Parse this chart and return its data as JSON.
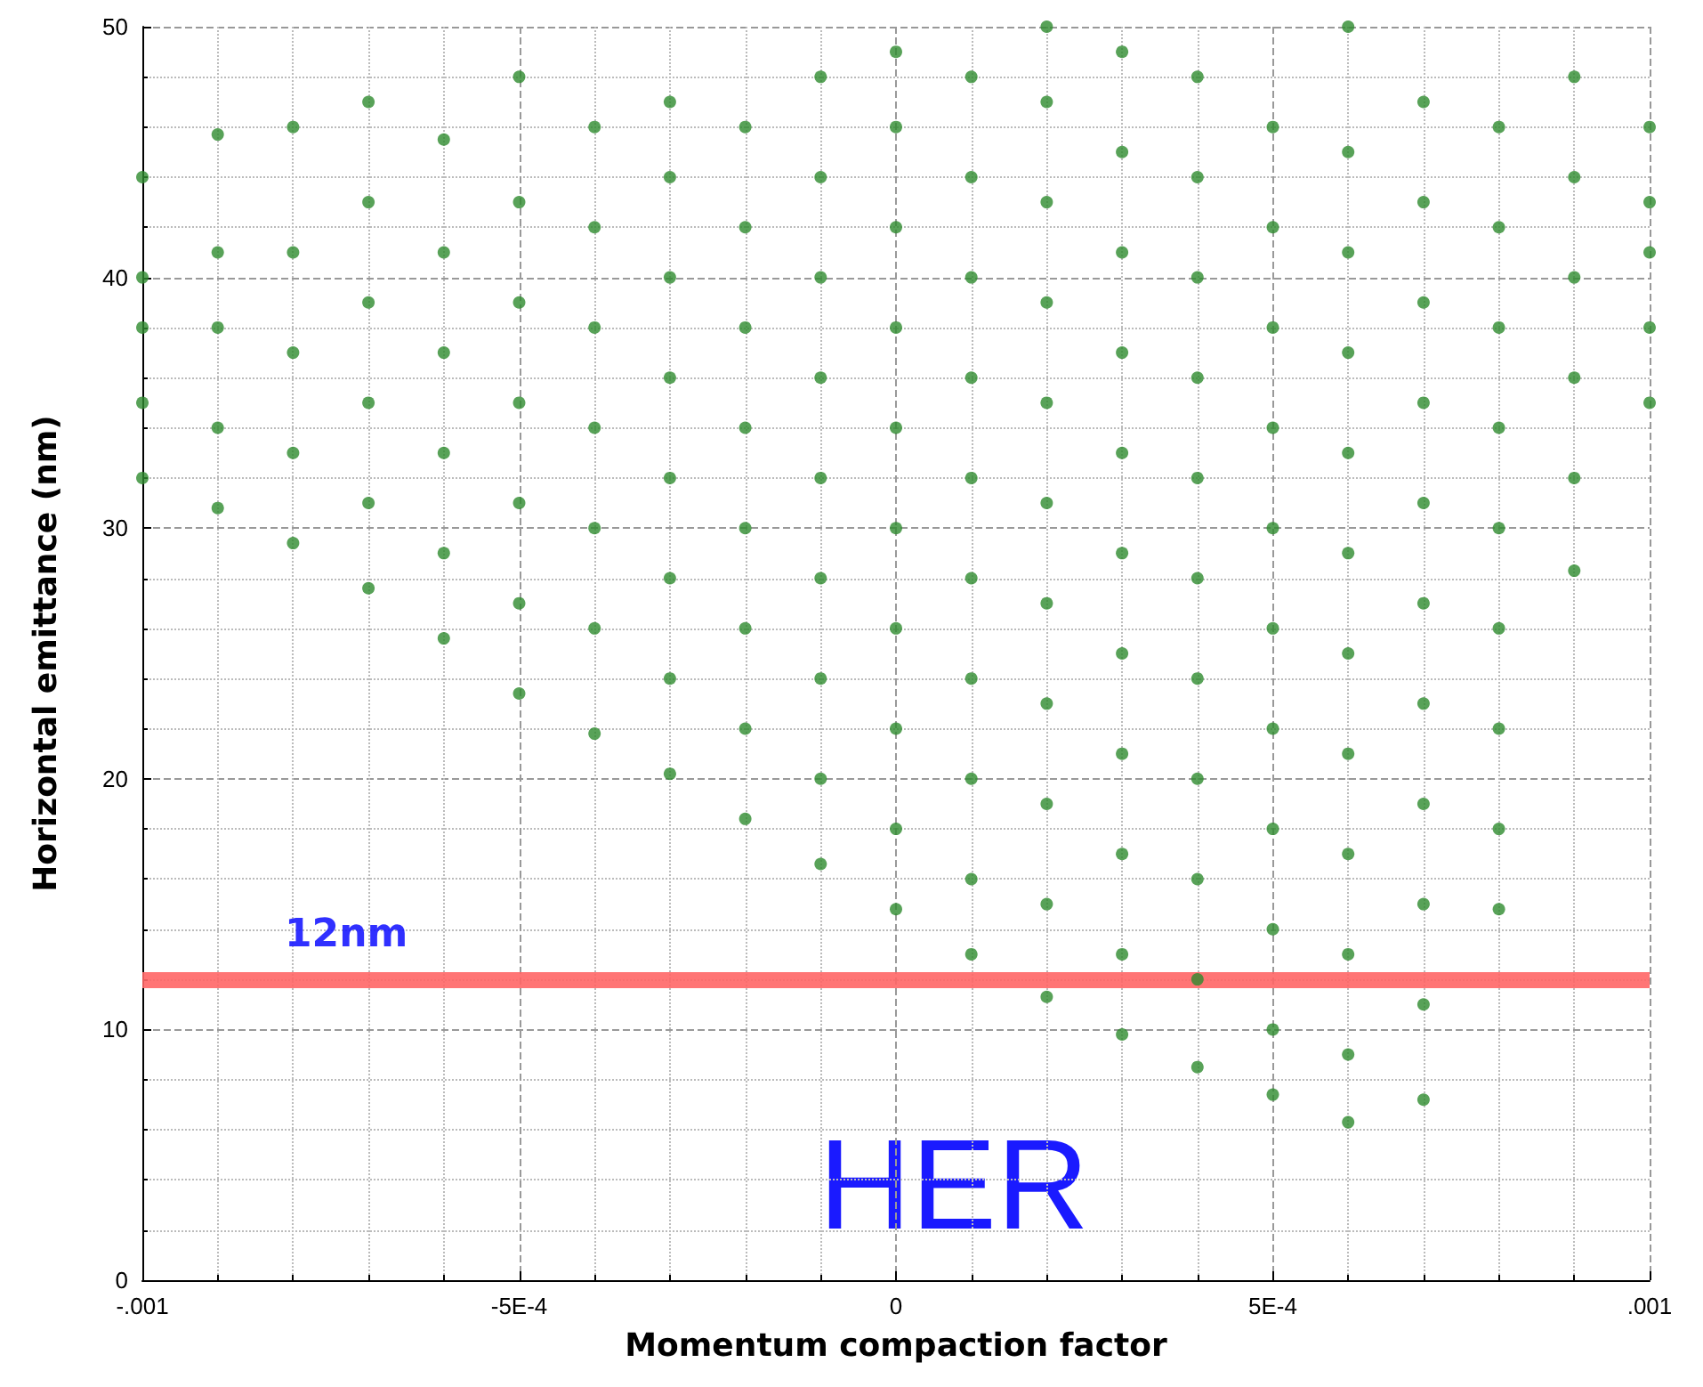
{
  "chart_data": {
    "type": "scatter",
    "xlabel": "Momentum compaction factor",
    "ylabel": "Horizontal emittance (nm)",
    "marker": "circle",
    "grid": true,
    "xlim": [
      -0.001,
      0.001
    ],
    "xticks": [
      {
        "value": -0.001,
        "label": "-.001"
      },
      {
        "value": -0.0005,
        "label": "-5E-4"
      },
      0,
      {
        "value": 0.0005,
        "label": "5E-4"
      },
      {
        "value": 0.001,
        "label": ".001"
      }
    ],
    "ylim": [
      0,
      50
    ],
    "yticks": [
      0,
      10,
      20,
      30,
      40,
      50
    ],
    "ref_lines": [
      {
        "axis": "y",
        "value": 12,
        "label": "12nm",
        "color": "#ff6666"
      }
    ],
    "annotations": [
      "HER"
    ],
    "series": [
      {
        "color": "#2e8b2e",
        "x": [
          -0.001,
          -0.001,
          -0.001,
          -0.001,
          -0.001,
          -0.0009,
          -0.0009,
          -0.0009,
          -0.0009,
          -0.0009,
          -0.0008,
          -0.0008,
          -0.0008,
          -0.0008,
          -0.0008,
          -0.0007,
          -0.0007,
          -0.0007,
          -0.0007,
          -0.0007,
          -0.0007,
          -0.0006,
          -0.0006,
          -0.0006,
          -0.0006,
          -0.0006,
          -0.0006,
          -0.0005,
          -0.0005,
          -0.0005,
          -0.0005,
          -0.0005,
          -0.0005,
          -0.0005,
          -0.0004,
          -0.0004,
          -0.0004,
          -0.0004,
          -0.0004,
          -0.0004,
          -0.0004,
          -0.0003,
          -0.0003,
          -0.0003,
          -0.0003,
          -0.0003,
          -0.0003,
          -0.0003,
          -0.0003,
          -0.0002,
          -0.0002,
          -0.0002,
          -0.0002,
          -0.0002,
          -0.0002,
          -0.0002,
          -0.0002,
          -0.0001,
          -0.0001,
          -0.0001,
          -0.0001,
          -0.0001,
          -0.0001,
          -0.0001,
          -0.0001,
          -0.0001,
          0,
          0,
          0,
          0,
          0,
          0,
          0,
          0,
          0,
          0,
          0.0001,
          0.0001,
          0.0001,
          0.0001,
          0.0001,
          0.0001,
          0.0001,
          0.0001,
          0.0001,
          0.0001,
          0.0002,
          0.0002,
          0.0002,
          0.0002,
          0.0002,
          0.0002,
          0.0002,
          0.0002,
          0.0002,
          0.0002,
          0.0002,
          0.0003,
          0.0003,
          0.0003,
          0.0003,
          0.0003,
          0.0003,
          0.0003,
          0.0003,
          0.0003,
          0.0003,
          0.0003,
          0.0004,
          0.0004,
          0.0004,
          0.0004,
          0.0004,
          0.0004,
          0.0004,
          0.0004,
          0.0004,
          0.0004,
          0.0004,
          0.0005,
          0.0005,
          0.0005,
          0.0005,
          0.0005,
          0.0005,
          0.0005,
          0.0005,
          0.0005,
          0.0005,
          0.0005,
          0.0006,
          0.0006,
          0.0006,
          0.0006,
          0.0006,
          0.0006,
          0.0006,
          0.0006,
          0.0006,
          0.0006,
          0.0006,
          0.0006,
          0.0007,
          0.0007,
          0.0007,
          0.0007,
          0.0007,
          0.0007,
          0.0007,
          0.0007,
          0.0007,
          0.0007,
          0.0007,
          0.0008,
          0.0008,
          0.0008,
          0.0008,
          0.0008,
          0.0008,
          0.0008,
          0.0008,
          0.0008,
          0.0009,
          0.0009,
          0.0009,
          0.0009,
          0.0009,
          0.0009,
          0.001,
          0.001,
          0.001,
          0.001,
          0.001
        ],
        "values": [
          32,
          35,
          38,
          40,
          44,
          30.8,
          34,
          38,
          41,
          45.7,
          29.4,
          33,
          37,
          41,
          46,
          27.6,
          31,
          35,
          39,
          43,
          47,
          25.6,
          29,
          33,
          37,
          41,
          45.5,
          23.4,
          27,
          31,
          35,
          39,
          43,
          48,
          21.8,
          26,
          30,
          34,
          38,
          42,
          46,
          20.2,
          24,
          28,
          32,
          36,
          40,
          44,
          47,
          18.4,
          22,
          26,
          30,
          34,
          38,
          42,
          46,
          16.6,
          20,
          24,
          28,
          32,
          36,
          40,
          44,
          48,
          14.8,
          18,
          22,
          26,
          30,
          34,
          38,
          42,
          46,
          49,
          13,
          16,
          20,
          24,
          28,
          32,
          36,
          40,
          44,
          48,
          11.3,
          15,
          19,
          23,
          27,
          31,
          35,
          39,
          43,
          47,
          50,
          9.8,
          13,
          17,
          21,
          25,
          29,
          33,
          37,
          41,
          45,
          49,
          8.5,
          12,
          16,
          20,
          24,
          28,
          32,
          36,
          40,
          44,
          48,
          7.4,
          10,
          14,
          18,
          22,
          26,
          30,
          34,
          38,
          42,
          46,
          6.3,
          9,
          13,
          17,
          21,
          25,
          29,
          33,
          37,
          41,
          45,
          50,
          7.2,
          11,
          15,
          19,
          23,
          27,
          31,
          35,
          39,
          43,
          47,
          14.8,
          18,
          22,
          26,
          30,
          34,
          38,
          42,
          46,
          28.3,
          32,
          36,
          40,
          44,
          48,
          35,
          38,
          41,
          43,
          46
        ]
      }
    ]
  }
}
